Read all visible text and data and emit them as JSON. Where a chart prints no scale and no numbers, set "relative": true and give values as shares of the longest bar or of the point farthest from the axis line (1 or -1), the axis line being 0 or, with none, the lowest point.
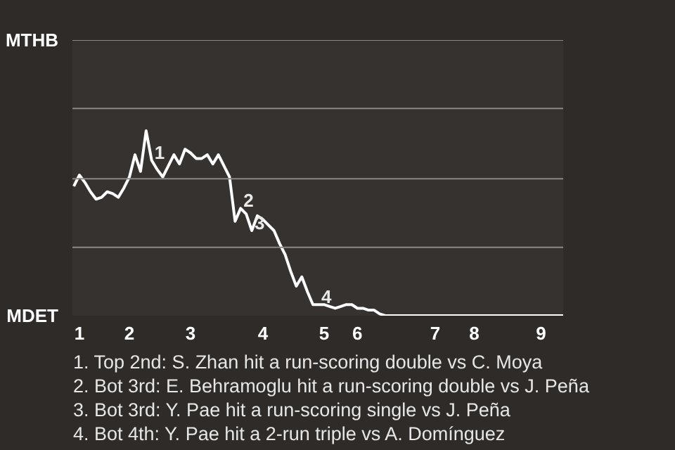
{
  "chart_data": {
    "type": "line",
    "relative": true,
    "categories": [
      null,
      "1",
      null,
      null,
      null,
      null,
      null,
      null,
      null,
      null,
      "2",
      null,
      null,
      null,
      null,
      null,
      null,
      null,
      null,
      null,
      null,
      "3",
      null,
      null,
      null,
      null,
      null,
      null,
      null,
      null,
      null,
      null,
      null,
      null,
      "4",
      null,
      null,
      null,
      null,
      null,
      null,
      null,
      null,
      null,
      null,
      "5",
      null,
      null,
      null,
      null,
      null,
      "6",
      null,
      null,
      null,
      null,
      null,
      null,
      null,
      null,
      null,
      null,
      null,
      null,
      null,
      "7",
      null,
      null,
      null,
      null,
      null,
      null,
      "8",
      null,
      null,
      null,
      null,
      null,
      null,
      null,
      null,
      null,
      null,
      null,
      "9",
      null,
      null,
      null,
      null
    ],
    "series": [
      {
        "color": "#ffffff",
        "values": [
          0.7,
          0.76,
          0.72,
          0.67,
          0.63,
          0.64,
          0.67,
          0.66,
          0.64,
          0.69,
          0.75,
          0.87,
          0.78,
          1,
          0.84,
          0.79,
          0.75,
          0.81,
          0.87,
          0.82,
          0.9,
          0.88,
          0.85,
          0.85,
          0.87,
          0.82,
          0.87,
          0.81,
          0.75,
          0.51,
          0.58,
          0.55,
          0.46,
          0.54,
          0.52,
          0.49,
          0.46,
          0.39,
          0.33,
          0.24,
          0.16,
          0.21,
          0.13,
          0.06,
          0.06,
          0.06,
          0.05,
          0.04,
          0.05,
          0.06,
          0.06,
          0.04,
          0.04,
          0.03,
          0.03,
          0.01,
          0,
          0,
          0,
          0,
          0,
          0,
          0,
          0,
          0,
          0,
          0,
          0,
          0,
          0,
          0,
          0,
          0,
          0,
          0,
          0,
          0,
          0,
          0,
          0,
          0,
          0,
          0,
          0,
          0,
          0,
          0,
          0,
          0
        ]
      }
    ],
    "value_labels": [
      null,
      null,
      null,
      null,
      null,
      null,
      null,
      null,
      null,
      null,
      null,
      null,
      null,
      null,
      "1",
      null,
      null,
      null,
      null,
      null,
      null,
      null,
      null,
      null,
      null,
      null,
      null,
      null,
      null,
      null,
      "2",
      null,
      "3",
      null,
      null,
      null,
      null,
      null,
      null,
      null,
      null,
      null,
      null,
      null,
      "4",
      null,
      null,
      null,
      null,
      null,
      null,
      null,
      null,
      null,
      null,
      null,
      null,
      null,
      null,
      null,
      null,
      null,
      null,
      null,
      null,
      null,
      null,
      null,
      null,
      null,
      null,
      null,
      null,
      null,
      null,
      null,
      null,
      null,
      null,
      null,
      null,
      null,
      null,
      null,
      null,
      null,
      null,
      null,
      null
    ],
    "ref_lines": [
      {
        "axis": "y",
        "value": 0.37,
        "color": "#8a8886"
      },
      {
        "axis": "y",
        "value": 0.74,
        "color": "#8a8886"
      },
      {
        "axis": "y",
        "value": 1.12,
        "color": "#8a8886"
      },
      {
        "axis": "y",
        "value": 1.49,
        "color": "#8a8886"
      }
    ],
    "line_style": "solid",
    "annotations": [
      "MTHB",
      "MDET",
      "1. Top 2nd: S. Zhan hit a run-scoring double vs C. Moya",
      "2. Bot 3rd: E. Behramoglu hit a run-scoring double vs J. Peña",
      "3. Bot 3rd: Y. Pae hit a run-scoring single vs J. Peña",
      "4. Bot 4th: Y. Pae hit a 2-run triple vs A. Domínguez"
    ]
  }
}
